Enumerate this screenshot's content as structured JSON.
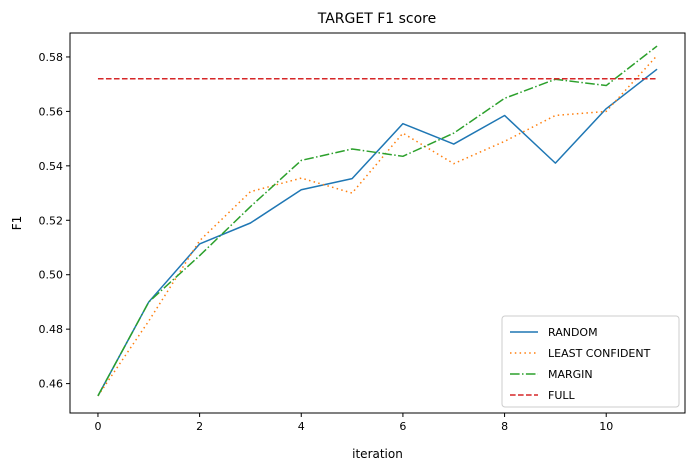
{
  "chart_data": {
    "type": "line",
    "title": "TARGET F1 score",
    "xlabel": "iteration",
    "ylabel": "F1",
    "xlim": [
      -0.55,
      11.55
    ],
    "ylim": [
      0.4492,
      0.5888
    ],
    "xticks": [
      0,
      2,
      4,
      6,
      8,
      10
    ],
    "xtick_labels": [
      "0",
      "2",
      "4",
      "6",
      "8",
      "10"
    ],
    "yticks": [
      0.46,
      0.48,
      0.5,
      0.52,
      0.54,
      0.56,
      0.58
    ],
    "ytick_labels": [
      "0.46",
      "0.48",
      "0.50",
      "0.52",
      "0.54",
      "0.56",
      "0.58"
    ],
    "grid": false,
    "legend_position": "bottom-right",
    "x": [
      0,
      1,
      2,
      3,
      4,
      5,
      6,
      7,
      8,
      9,
      10,
      11
    ],
    "series": [
      {
        "name": "RANDOM",
        "color": "#1f77b4",
        "dash": "solid",
        "values": [
          0.4555,
          0.49,
          0.5113,
          0.519,
          0.5312,
          0.5353,
          0.5555,
          0.548,
          0.5585,
          0.541,
          0.561,
          0.5755
        ]
      },
      {
        "name": "LEAST CONFIDENT",
        "color": "#ff7f0e",
        "dash": "dotted",
        "values": [
          0.4555,
          0.483,
          0.5125,
          0.5305,
          0.5355,
          0.53,
          0.552,
          0.5408,
          0.549,
          0.5585,
          0.56,
          0.5805
        ]
      },
      {
        "name": "MARGIN",
        "color": "#2ca02c",
        "dash": "dashdot",
        "values": [
          0.4555,
          0.49,
          0.507,
          0.525,
          0.542,
          0.5462,
          0.5435,
          0.552,
          0.5648,
          0.5718,
          0.5695,
          0.584
        ]
      },
      {
        "name": "FULL",
        "color": "#d62728",
        "dash": "dashed",
        "values": [
          0.572,
          0.572,
          0.572,
          0.572,
          0.572,
          0.572,
          0.572,
          0.572,
          0.572,
          0.572,
          0.572,
          0.572
        ]
      }
    ]
  }
}
